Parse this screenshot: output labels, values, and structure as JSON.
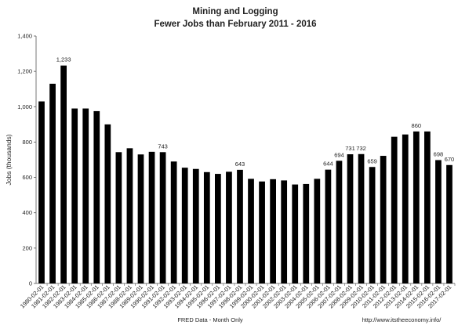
{
  "chart_data": {
    "type": "bar",
    "title": "Mining and Logging",
    "subtitle": "Fewer Jobs than February 2011 - 2016",
    "xlabel": "FRED Data  - Month Only",
    "ylabel": "Jobs (thousands)",
    "ylim": [
      0,
      1400
    ],
    "yticks": [
      "0",
      "200",
      "400",
      "600",
      "800",
      "1,000",
      "1,200",
      "1,400"
    ],
    "grid": false,
    "legend": "none",
    "bar_color": "#000000",
    "categories": [
      "1980-02-01",
      "1981-02-01",
      "1982-02-01",
      "1983-02-01",
      "1984-02-01",
      "1985-02-01",
      "1986-02-01",
      "1987-02-01",
      "1988-02-01",
      "1989-02-01",
      "1990-02-01",
      "1991-02-01",
      "1992-02-01",
      "1993-02-01",
      "1994-02-01",
      "1995-02-01",
      "1996-02-01",
      "1997-02-01",
      "1998-02-01",
      "1999-02-01",
      "2000-02-01",
      "2001-02-01",
      "2002-02-01",
      "2003-02-01",
      "2004-02-01",
      "2005-02-01",
      "2006-02-01",
      "2007-02-01",
      "2008-02-01",
      "2009-02-01",
      "2010-02-01",
      "2011-02-01",
      "2012-02-01",
      "2013-02-01",
      "2014-02-01",
      "2015-02-01",
      "2016-02-01",
      "2017-02-01"
    ],
    "values": [
      1030,
      1130,
      1233,
      990,
      990,
      975,
      900,
      743,
      765,
      730,
      745,
      743,
      690,
      655,
      648,
      630,
      620,
      632,
      643,
      592,
      577,
      590,
      583,
      560,
      563,
      592,
      644,
      694,
      731,
      732,
      659,
      722,
      830,
      843,
      860,
      860,
      698,
      670
    ],
    "data_labels": [
      {
        "index": 2,
        "text": "1,233"
      },
      {
        "index": 11,
        "text": "743"
      },
      {
        "index": 18,
        "text": "643"
      },
      {
        "index": 26,
        "text": "644"
      },
      {
        "index": 27,
        "text": "694"
      },
      {
        "index": 28,
        "text": "731"
      },
      {
        "index": 29,
        "text": "732"
      },
      {
        "index": 30,
        "text": "659"
      },
      {
        "index": 34,
        "text": "860"
      },
      {
        "index": 36,
        "text": "698"
      },
      {
        "index": 37,
        "text": "670"
      }
    ]
  },
  "footer": {
    "url": "http://www.itstheeconomy.info/"
  }
}
